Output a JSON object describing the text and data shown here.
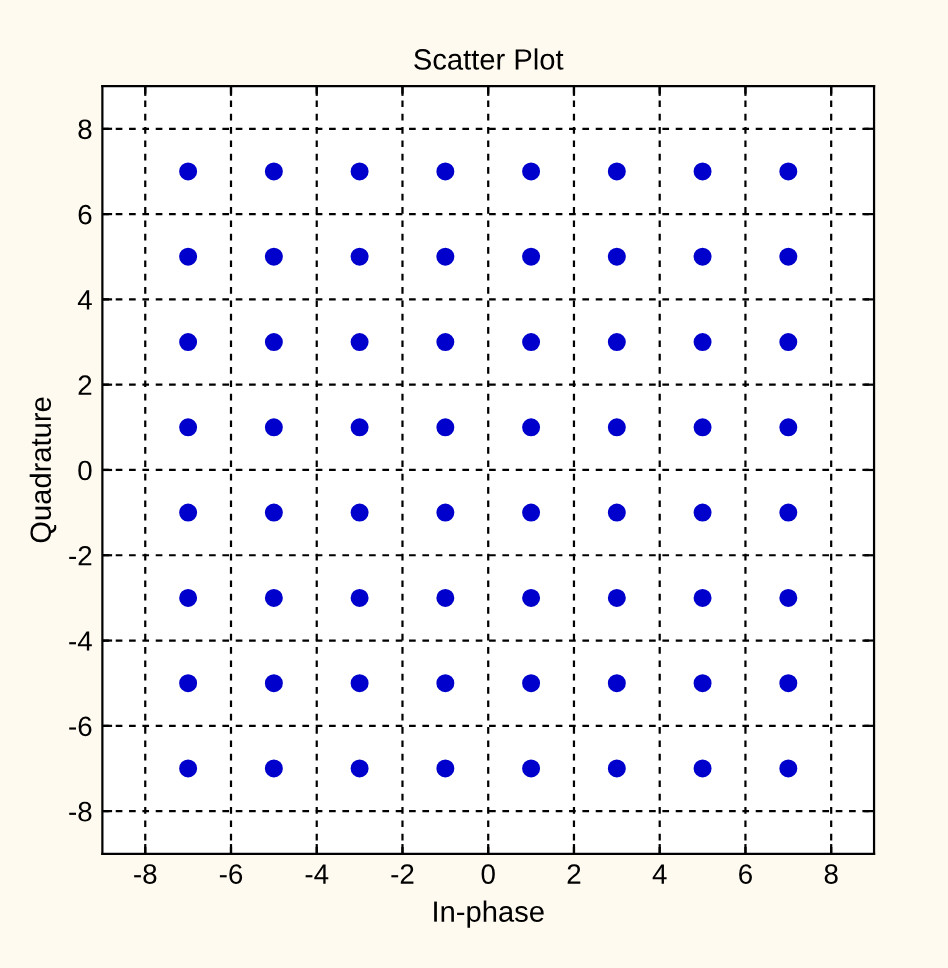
{
  "chart_data": {
    "type": "scatter",
    "title": "Scatter Plot",
    "xlabel": "In-phase",
    "ylabel": "Quadrature",
    "series": [
      {
        "color": "#0000cc",
        "x": [
          -7,
          -7,
          -7,
          -7,
          -7,
          -7,
          -7,
          -7,
          -5,
          -5,
          -5,
          -5,
          -5,
          -5,
          -5,
          -5,
          -3,
          -3,
          -3,
          -3,
          -3,
          -3,
          -3,
          -3,
          -1,
          -1,
          -1,
          -1,
          -1,
          -1,
          -1,
          -1,
          1,
          1,
          1,
          1,
          1,
          1,
          1,
          1,
          3,
          3,
          3,
          3,
          3,
          3,
          3,
          3,
          5,
          5,
          5,
          5,
          5,
          5,
          5,
          5,
          7,
          7,
          7,
          7,
          7,
          7,
          7,
          7
        ],
        "values": [
          7,
          5,
          3,
          1,
          -1,
          -3,
          -5,
          -7,
          7,
          5,
          3,
          1,
          -1,
          -3,
          -5,
          -7,
          7,
          5,
          3,
          1,
          -1,
          -3,
          -5,
          -7,
          7,
          5,
          3,
          1,
          -1,
          -3,
          -5,
          -7,
          7,
          5,
          3,
          1,
          -1,
          -3,
          -5,
          -7,
          7,
          5,
          3,
          1,
          -1,
          -3,
          -5,
          -7,
          7,
          5,
          3,
          1,
          -1,
          -3,
          -5,
          -7,
          7,
          5,
          3,
          1,
          -1,
          -3,
          -5,
          -7
        ]
      }
    ],
    "xlim": [
      -9,
      9
    ],
    "ylim": [
      -9,
      9
    ],
    "xticks": [
      -8,
      -6,
      -4,
      -2,
      0,
      2,
      4,
      6,
      8
    ],
    "yticks": [
      -8,
      -6,
      -4,
      -2,
      0,
      2,
      4,
      6,
      8
    ],
    "grid": true,
    "marker": "circle",
    "legend": false
  }
}
